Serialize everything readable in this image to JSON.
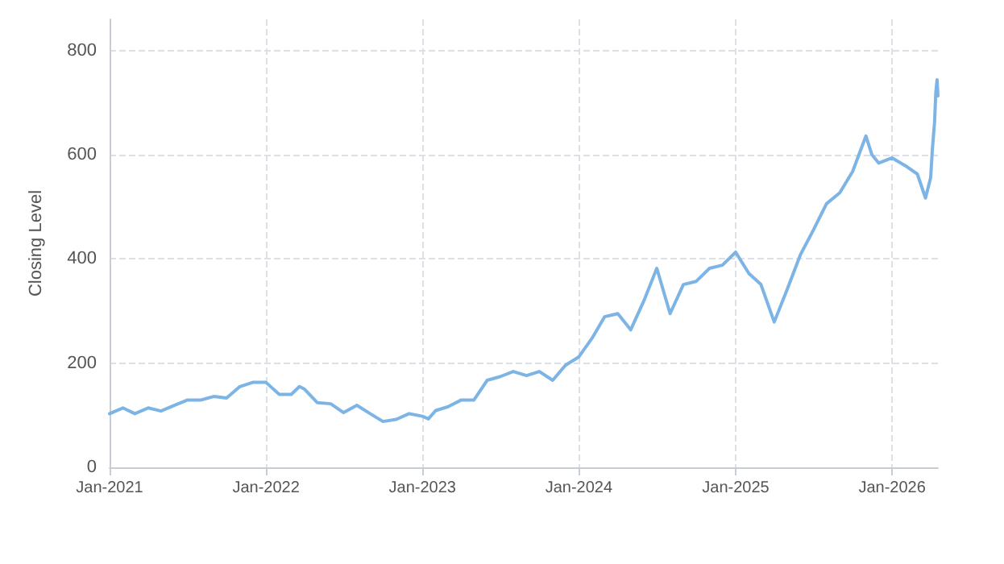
{
  "chart_data": {
    "type": "line",
    "ylabel": "Closing Level",
    "color": "#7db4e6",
    "grid": true,
    "marker": "none",
    "line_style": "solid",
    "x": [
      "2021-01-01",
      "2021-02-01",
      "2021-03-01",
      "2021-04-01",
      "2021-05-01",
      "2021-06-01",
      "2021-07-01",
      "2021-08-01",
      "2021-09-01",
      "2021-10-01",
      "2021-11-01",
      "2021-12-01",
      "2022-01-01",
      "2022-02-01",
      "2022-03-01",
      "2022-03-20",
      "2022-04-01",
      "2022-05-01",
      "2022-06-01",
      "2022-07-01",
      "2022-08-01",
      "2022-09-01",
      "2022-10-01",
      "2022-11-01",
      "2022-12-01",
      "2023-01-01",
      "2023-01-15",
      "2023-02-01",
      "2023-03-01",
      "2023-04-01",
      "2023-05-01",
      "2023-06-01",
      "2023-07-01",
      "2023-08-01",
      "2023-09-01",
      "2023-10-01",
      "2023-11-01",
      "2023-12-01",
      "2024-01-01",
      "2024-02-01",
      "2024-03-01",
      "2024-04-01",
      "2024-05-01",
      "2024-06-01",
      "2024-07-01",
      "2024-08-01",
      "2024-09-01",
      "2024-10-01",
      "2024-11-01",
      "2024-12-01",
      "2025-01-01",
      "2025-02-01",
      "2025-03-01",
      "2025-04-01",
      "2025-05-01",
      "2025-06-01",
      "2025-07-01",
      "2025-08-01",
      "2025-09-01",
      "2025-10-01",
      "2025-11-01",
      "2025-11-15",
      "2025-12-01",
      "2026-01-01",
      "2026-02-01",
      "2026-03-01",
      "2026-03-20",
      "2026-04-01",
      "2026-04-05",
      "2026-04-10",
      "2026-04-13",
      "2026-04-16",
      "2026-04-18"
    ],
    "values": [
      103,
      114,
      103,
      114,
      108,
      119,
      129,
      129,
      136,
      133,
      155,
      163,
      163,
      140,
      140,
      155,
      150,
      124,
      122,
      105,
      119,
      103,
      88,
      92,
      103,
      98,
      93,
      109,
      116,
      129,
      129,
      167,
      174,
      184,
      176,
      184,
      167,
      196,
      212,
      248,
      289,
      295,
      264,
      320,
      382,
      295,
      351,
      357,
      382,
      388,
      413,
      372,
      351,
      279,
      341,
      408,
      455,
      506,
      527,
      568,
      636,
      600,
      584,
      594,
      579,
      563,
      517,
      556,
      610,
      661,
      718,
      744,
      713
    ],
    "xlim": [
      "2021-01-01",
      "2026-04-18"
    ],
    "xticks": [
      {
        "value": "2021-01-01",
        "label": "Jan-2021"
      },
      {
        "value": "2022-01-01",
        "label": "Jan-2022"
      },
      {
        "value": "2023-01-01",
        "label": "Jan-2023"
      },
      {
        "value": "2024-01-01",
        "label": "Jan-2024"
      },
      {
        "value": "2025-01-01",
        "label": "Jan-2025"
      },
      {
        "value": "2026-01-01",
        "label": "Jan-2026"
      }
    ],
    "ylim": [
      0,
      860
    ],
    "yticks": [
      0,
      200,
      400,
      600,
      800
    ]
  }
}
